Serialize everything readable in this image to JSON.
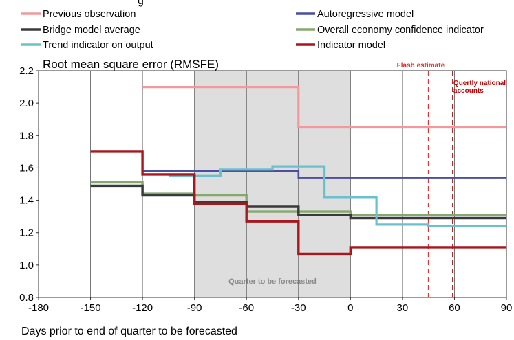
{
  "chart_data": {
    "type": "line",
    "step": true,
    "title_partial": "g",
    "ylabel": "Root mean square error (RMSFE)",
    "xlabel": "Days prior to end of quarter to be forecasted",
    "xlim": [
      -180,
      90
    ],
    "ylim": [
      0.8,
      2.2
    ],
    "x_ticks": [
      "-180",
      "-150",
      "-120",
      "-90",
      "-60",
      "-30",
      "0",
      "30",
      "60",
      "90"
    ],
    "y_ticks": [
      "0.8",
      "1.0",
      "1.2",
      "1.4",
      "1.6",
      "1.8",
      "2.0",
      "2.2"
    ],
    "x_tick_values": [
      -180,
      -150,
      -120,
      -90,
      -60,
      -30,
      0,
      30,
      60,
      90
    ],
    "y_tick_values": [
      0.8,
      1.0,
      1.2,
      1.4,
      1.6,
      1.8,
      2.0,
      2.2
    ],
    "grid": "vertical",
    "shaded_region": {
      "x": [
        -90,
        0
      ],
      "color": "#dedede",
      "label": "Quarter to be forecasted"
    },
    "vlines": [
      {
        "x": 45,
        "label": "Flash estimate",
        "color": "#e8302f"
      },
      {
        "x": 59,
        "label_lines": [
          "Quertly national",
          "accounts"
        ],
        "color": "#c00000"
      }
    ],
    "legend_position": "top",
    "series": [
      {
        "name": "Previous observation",
        "color": "#f4999b",
        "points": [
          [
            -120,
            2.1
          ],
          [
            -30,
            2.1
          ],
          [
            -30,
            1.85
          ],
          [
            90,
            1.85
          ]
        ]
      },
      {
        "name": "Autoregressive model",
        "color": "#4a4fa3",
        "points": [
          [
            -120,
            1.58
          ],
          [
            -30,
            1.58
          ],
          [
            -30,
            1.54
          ],
          [
            90,
            1.54
          ]
        ]
      },
      {
        "name": "Bridge model average",
        "color": "#3a3a3a",
        "points": [
          [
            -150,
            1.49
          ],
          [
            -120,
            1.49
          ],
          [
            -120,
            1.43
          ],
          [
            -90,
            1.43
          ],
          [
            -90,
            1.39
          ],
          [
            -60,
            1.39
          ],
          [
            -60,
            1.36
          ],
          [
            -30,
            1.36
          ],
          [
            -30,
            1.31
          ],
          [
            0,
            1.31
          ],
          [
            0,
            1.29
          ],
          [
            90,
            1.29
          ]
        ]
      },
      {
        "name": "Overall economy confidence indicator",
        "color": "#84a86e",
        "points": [
          [
            -150,
            1.51
          ],
          [
            -120,
            1.51
          ],
          [
            -120,
            1.44
          ],
          [
            -90,
            1.44
          ],
          [
            -90,
            1.43
          ],
          [
            -60,
            1.43
          ],
          [
            -60,
            1.33
          ],
          [
            -30,
            1.33
          ],
          [
            -30,
            1.33
          ],
          [
            0,
            1.33
          ],
          [
            0,
            1.31
          ],
          [
            90,
            1.31
          ]
        ]
      },
      {
        "name": "Trend indicator on output",
        "color": "#6ac0cd",
        "points": [
          [
            -105,
            1.55
          ],
          [
            -75,
            1.55
          ],
          [
            -75,
            1.59
          ],
          [
            -45,
            1.59
          ],
          [
            -45,
            1.61
          ],
          [
            -15,
            1.61
          ],
          [
            -15,
            1.42
          ],
          [
            15,
            1.42
          ],
          [
            15,
            1.25
          ],
          [
            45,
            1.25
          ],
          [
            45,
            1.24
          ],
          [
            90,
            1.24
          ]
        ]
      },
      {
        "name": "Indicator model",
        "color": "#a8171d",
        "points": [
          [
            -150,
            1.7
          ],
          [
            -120,
            1.7
          ],
          [
            -120,
            1.56
          ],
          [
            -90,
            1.56
          ],
          [
            -90,
            1.38
          ],
          [
            -60,
            1.38
          ],
          [
            -60,
            1.27
          ],
          [
            -30,
            1.27
          ],
          [
            -30,
            1.07
          ],
          [
            0,
            1.07
          ],
          [
            0,
            1.11
          ],
          [
            90,
            1.11
          ]
        ]
      }
    ]
  }
}
